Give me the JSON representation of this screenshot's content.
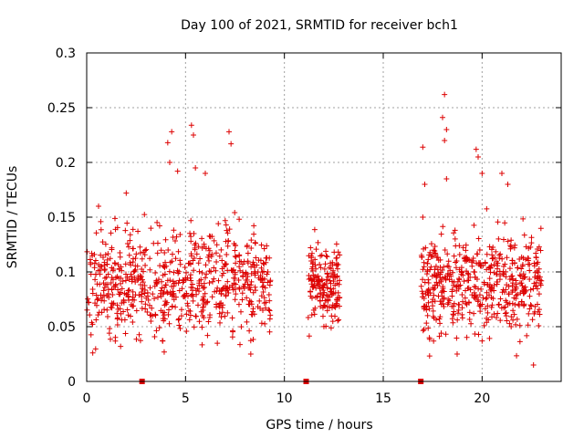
{
  "chart_data": {
    "type": "scatter",
    "title": "Day 100 of 2021, SRMTID for receiver bch1",
    "xlabel": "GPS time / hours",
    "ylabel": "SRMTID / TECUs",
    "xlim": [
      0,
      24
    ],
    "ylim": [
      0,
      0.3
    ],
    "xticks": [
      0,
      5,
      10,
      15,
      20
    ],
    "xtick_labels": [
      "0",
      "5",
      "10",
      "15",
      "20"
    ],
    "yticks": [
      0,
      0.05,
      0.1,
      0.15,
      0.2,
      0.25,
      0.3
    ],
    "ytick_labels": [
      "0",
      "0.05",
      "0.1",
      "0.15",
      "0.2",
      "0.25",
      "0.3"
    ],
    "grid": true,
    "marker": "plus",
    "series_color": "#dd0000",
    "segments": [
      {
        "start": 0.0,
        "end": 9.3,
        "center": 0.09,
        "spread": 0.04,
        "n": 700
      },
      {
        "start": 11.2,
        "end": 12.8,
        "center": 0.088,
        "spread": 0.03,
        "n": 170
      },
      {
        "start": 16.9,
        "end": 23.0,
        "center": 0.09,
        "spread": 0.04,
        "n": 520
      }
    ],
    "outliers": [
      {
        "x": 4.1,
        "y": 0.218
      },
      {
        "x": 4.3,
        "y": 0.228
      },
      {
        "x": 4.2,
        "y": 0.2
      },
      {
        "x": 5.3,
        "y": 0.234
      },
      {
        "x": 5.4,
        "y": 0.225
      },
      {
        "x": 5.5,
        "y": 0.195
      },
      {
        "x": 7.2,
        "y": 0.228
      },
      {
        "x": 7.3,
        "y": 0.217
      },
      {
        "x": 2.0,
        "y": 0.172
      },
      {
        "x": 4.6,
        "y": 0.192
      },
      {
        "x": 6.0,
        "y": 0.19
      },
      {
        "x": 0.6,
        "y": 0.16
      },
      {
        "x": 17.0,
        "y": 0.214
      },
      {
        "x": 17.1,
        "y": 0.18
      },
      {
        "x": 17.0,
        "y": 0.15
      },
      {
        "x": 18.1,
        "y": 0.262
      },
      {
        "x": 18.0,
        "y": 0.241
      },
      {
        "x": 18.2,
        "y": 0.23
      },
      {
        "x": 18.1,
        "y": 0.22
      },
      {
        "x": 18.2,
        "y": 0.185
      },
      {
        "x": 19.7,
        "y": 0.212
      },
      {
        "x": 19.8,
        "y": 0.205
      },
      {
        "x": 20.0,
        "y": 0.19
      },
      {
        "x": 21.0,
        "y": 0.19
      },
      {
        "x": 21.3,
        "y": 0.18
      },
      {
        "x": 22.6,
        "y": 0.015
      },
      {
        "x": 8.3,
        "y": 0.025
      }
    ],
    "missing_markers_x": [
      2.8,
      11.1,
      16.9
    ]
  }
}
